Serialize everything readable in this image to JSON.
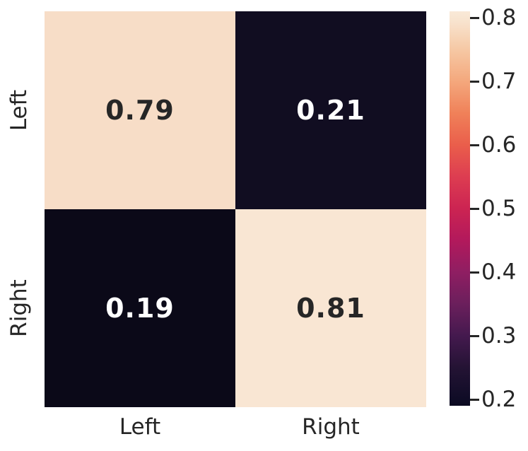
{
  "chart_data": {
    "type": "heatmap",
    "title": "",
    "xlabel": "",
    "ylabel": "",
    "x_categories": [
      "Left",
      "Right"
    ],
    "y_categories": [
      "Left",
      "Right"
    ],
    "values": [
      [
        0.79,
        0.21
      ],
      [
        0.19,
        0.81
      ]
    ],
    "cells": [
      {
        "row": "Left",
        "col": "Left",
        "value": 0.79,
        "label": "0.79",
        "color": "#f7ddc7",
        "text_color": "#262626"
      },
      {
        "row": "Left",
        "col": "Right",
        "value": 0.21,
        "label": "0.21",
        "color": "#110d21",
        "text_color": "#ffffff"
      },
      {
        "row": "Right",
        "col": "Left",
        "value": 0.19,
        "label": "0.19",
        "color": "#0b0918",
        "text_color": "#ffffff"
      },
      {
        "row": "Right",
        "col": "Right",
        "value": 0.81,
        "label": "0.81",
        "color": "#f9e6d3",
        "text_color": "#262626"
      }
    ],
    "colorbar": {
      "colormap": "rocket",
      "vmin": 0.19,
      "vmax": 0.81,
      "tick_labels": [
        "0.8",
        "0.7",
        "0.6",
        "0.5",
        "0.4",
        "0.3",
        "0.2"
      ],
      "gradient_stops": [
        "#f9e9d8 0%",
        "#f8e2cc 3%",
        "#f6c8a4 9.7%",
        "#f4a87d 17.7%",
        "#f08159 25.8%",
        "#ea5e4b 33.9%",
        "#dd3d51 41.9%",
        "#cc2452 50%",
        "#b2195c 58.1%",
        "#8f1e62 66.1%",
        "#6b1f5c 74.2%",
        "#44194e 82.3%",
        "#241334 90.3%",
        "#0f0c26 98.4%",
        "#0b0a20 100%"
      ]
    },
    "legend": "none",
    "grid": false
  },
  "colors": {
    "background": "#ffffff",
    "text": "#262626",
    "annotation_light": "#ffffff",
    "annotation_dark": "#262626"
  }
}
